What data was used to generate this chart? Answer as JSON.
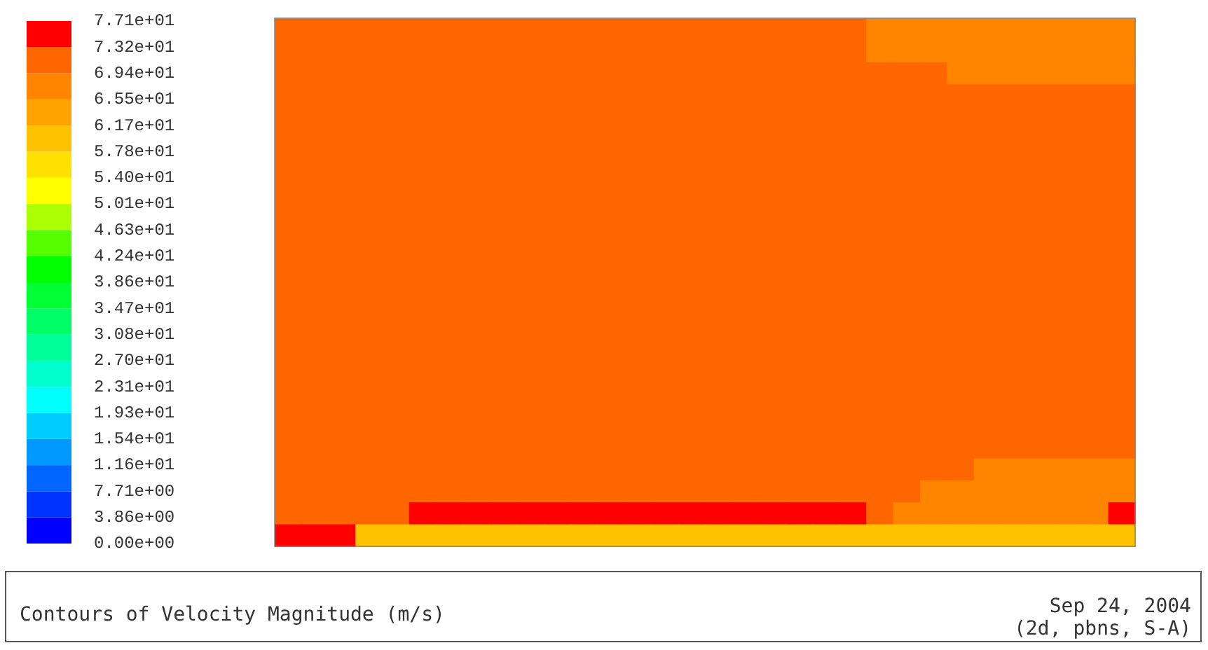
{
  "chart_data": {
    "type": "heatmap",
    "title": "Contours of Velocity Magnitude (m/s)",
    "annotations": [
      "Sep 24, 2004",
      "(2d, pbns, S-A)"
    ],
    "categories": [
      null,
      null,
      null,
      null,
      null,
      null,
      null,
      null,
      null,
      null,
      null,
      null,
      null,
      null,
      null,
      null,
      null,
      null,
      null,
      null,
      null,
      null,
      null,
      null,
      null,
      null,
      null,
      null,
      null,
      null,
      null,
      null
    ],
    "y_categories": [
      null,
      null,
      null,
      null,
      null,
      null,
      null,
      null,
      null,
      null,
      null,
      null,
      null,
      null,
      null,
      null,
      null,
      null,
      null,
      null,
      null,
      null,
      null,
      null
    ],
    "clim": [
      0,
      77.1
    ],
    "cticks": [
      {
        "value": 0,
        "label": "0.00e+00"
      },
      {
        "value": 3.855,
        "label": "3.86e+00"
      },
      {
        "value": 7.71,
        "label": "7.71e+00"
      },
      {
        "value": 11.565,
        "label": "1.16e+01"
      },
      {
        "value": 15.42,
        "label": "1.54e+01"
      },
      {
        "value": 19.275,
        "label": "1.93e+01"
      },
      {
        "value": 23.13,
        "label": "2.31e+01"
      },
      {
        "value": 26.985,
        "label": "2.70e+01"
      },
      {
        "value": 30.84,
        "label": "3.08e+01"
      },
      {
        "value": 34.695,
        "label": "3.47e+01"
      },
      {
        "value": 38.55,
        "label": "3.86e+01"
      },
      {
        "value": 42.405,
        "label": "4.24e+01"
      },
      {
        "value": 46.26,
        "label": "4.63e+01"
      },
      {
        "value": 50.115,
        "label": "5.01e+01"
      },
      {
        "value": 53.97,
        "label": "5.40e+01"
      },
      {
        "value": 57.825,
        "label": "5.78e+01"
      },
      {
        "value": 61.68,
        "label": "6.17e+01"
      },
      {
        "value": 65.535,
        "label": "6.55e+01"
      },
      {
        "value": 69.39,
        "label": "6.94e+01"
      },
      {
        "value": 73.245,
        "label": "7.32e+01"
      },
      {
        "value": 77.1,
        "label": "7.71e+01"
      }
    ],
    "cells": [
      [
        71,
        71,
        71,
        71,
        71,
        71,
        71,
        71,
        71,
        71,
        71,
        71,
        71,
        71,
        71,
        71,
        71,
        71,
        71,
        71,
        71,
        71,
        67,
        67,
        67,
        67,
        67,
        67,
        67,
        67,
        67,
        67
      ],
      [
        71,
        71,
        71,
        71,
        71,
        71,
        71,
        71,
        71,
        71,
        71,
        71,
        71,
        71,
        71,
        71,
        71,
        71,
        71,
        71,
        71,
        71,
        67,
        67,
        67,
        67,
        67,
        67,
        67,
        67,
        67,
        67
      ],
      [
        71,
        71,
        71,
        71,
        71,
        71,
        71,
        71,
        71,
        71,
        71,
        71,
        71,
        71,
        71,
        71,
        71,
        71,
        71,
        71,
        71,
        71,
        71,
        71,
        71,
        67,
        67,
        67,
        67,
        67,
        67,
        67
      ],
      [
        71,
        71,
        71,
        71,
        71,
        71,
        71,
        71,
        71,
        71,
        71,
        71,
        71,
        71,
        71,
        71,
        71,
        71,
        71,
        71,
        71,
        71,
        71,
        71,
        71,
        71,
        71,
        71,
        71,
        71,
        71,
        71
      ],
      [
        71,
        71,
        71,
        71,
        71,
        71,
        71,
        71,
        71,
        71,
        71,
        71,
        71,
        71,
        71,
        71,
        71,
        71,
        71,
        71,
        71,
        71,
        71,
        71,
        71,
        71,
        71,
        71,
        71,
        71,
        71,
        71
      ],
      [
        71,
        71,
        71,
        71,
        71,
        71,
        71,
        71,
        71,
        71,
        71,
        71,
        71,
        71,
        71,
        71,
        71,
        71,
        71,
        71,
        71,
        71,
        71,
        71,
        71,
        71,
        71,
        71,
        71,
        71,
        71,
        71
      ],
      [
        71,
        71,
        71,
        71,
        71,
        71,
        71,
        71,
        71,
        71,
        71,
        71,
        71,
        71,
        71,
        71,
        71,
        71,
        71,
        71,
        71,
        71,
        71,
        71,
        71,
        71,
        71,
        71,
        71,
        71,
        71,
        71
      ],
      [
        71,
        71,
        71,
        71,
        71,
        71,
        71,
        71,
        71,
        71,
        71,
        71,
        71,
        71,
        71,
        71,
        71,
        71,
        71,
        71,
        71,
        71,
        71,
        71,
        71,
        71,
        71,
        71,
        71,
        71,
        71,
        71
      ],
      [
        71,
        71,
        71,
        71,
        71,
        71,
        71,
        71,
        71,
        71,
        71,
        71,
        71,
        71,
        71,
        71,
        71,
        71,
        71,
        71,
        71,
        71,
        71,
        71,
        71,
        71,
        71,
        71,
        71,
        71,
        71,
        71
      ],
      [
        71,
        71,
        71,
        71,
        71,
        71,
        71,
        71,
        71,
        71,
        71,
        71,
        71,
        71,
        71,
        71,
        71,
        71,
        71,
        71,
        71,
        71,
        71,
        71,
        71,
        71,
        71,
        71,
        71,
        71,
        71,
        71
      ],
      [
        71,
        71,
        71,
        71,
        71,
        71,
        71,
        71,
        71,
        71,
        71,
        71,
        71,
        71,
        71,
        71,
        71,
        71,
        71,
        71,
        71,
        71,
        71,
        71,
        71,
        71,
        71,
        71,
        71,
        71,
        71,
        71
      ],
      [
        71,
        71,
        71,
        71,
        71,
        71,
        71,
        71,
        71,
        71,
        71,
        71,
        71,
        71,
        71,
        71,
        71,
        71,
        71,
        71,
        71,
        71,
        71,
        71,
        71,
        71,
        71,
        71,
        71,
        71,
        71,
        71
      ],
      [
        71,
        71,
        71,
        71,
        71,
        71,
        71,
        71,
        71,
        71,
        71,
        71,
        71,
        71,
        71,
        71,
        71,
        71,
        71,
        71,
        71,
        71,
        71,
        71,
        71,
        71,
        71,
        71,
        71,
        71,
        71,
        71
      ],
      [
        71,
        71,
        71,
        71,
        71,
        71,
        71,
        71,
        71,
        71,
        71,
        71,
        71,
        71,
        71,
        71,
        71,
        71,
        71,
        71,
        71,
        71,
        71,
        71,
        71,
        71,
        71,
        71,
        71,
        71,
        71,
        71
      ],
      [
        71,
        71,
        71,
        71,
        71,
        71,
        71,
        71,
        71,
        71,
        71,
        71,
        71,
        71,
        71,
        71,
        71,
        71,
        71,
        71,
        71,
        71,
        71,
        71,
        71,
        71,
        71,
        71,
        71,
        71,
        71,
        71
      ],
      [
        71,
        71,
        71,
        71,
        71,
        71,
        71,
        71,
        71,
        71,
        71,
        71,
        71,
        71,
        71,
        71,
        71,
        71,
        71,
        71,
        71,
        71,
        71,
        71,
        71,
        71,
        71,
        71,
        71,
        71,
        71,
        71
      ],
      [
        71,
        71,
        71,
        71,
        71,
        71,
        71,
        71,
        71,
        71,
        71,
        71,
        71,
        71,
        71,
        71,
        71,
        71,
        71,
        71,
        71,
        71,
        71,
        71,
        71,
        71,
        71,
        71,
        71,
        71,
        71,
        71
      ],
      [
        71,
        71,
        71,
        71,
        71,
        71,
        71,
        71,
        71,
        71,
        71,
        71,
        71,
        71,
        71,
        71,
        71,
        71,
        71,
        71,
        71,
        71,
        71,
        71,
        71,
        71,
        71,
        71,
        71,
        71,
        71,
        71
      ],
      [
        71,
        71,
        71,
        71,
        71,
        71,
        71,
        71,
        71,
        71,
        71,
        71,
        71,
        71,
        71,
        71,
        71,
        71,
        71,
        71,
        71,
        71,
        71,
        71,
        71,
        71,
        71,
        71,
        71,
        71,
        71,
        71
      ],
      [
        71,
        71,
        71,
        71,
        71,
        71,
        71,
        71,
        71,
        71,
        71,
        71,
        71,
        71,
        71,
        71,
        71,
        71,
        71,
        71,
        71,
        71,
        71,
        71,
        71,
        71,
        71,
        71,
        71,
        71,
        71,
        71
      ],
      [
        71,
        71,
        71,
        71,
        71,
        71,
        71,
        71,
        71,
        71,
        71,
        71,
        71,
        71,
        71,
        71,
        71,
        71,
        71,
        71,
        71,
        71,
        71,
        71,
        71,
        71,
        67,
        67,
        67,
        67,
        67,
        67
      ],
      [
        71,
        71,
        71,
        71,
        71,
        71,
        71,
        71,
        71,
        71,
        71,
        71,
        71,
        71,
        71,
        71,
        71,
        71,
        71,
        71,
        71,
        71,
        71,
        71,
        67,
        67,
        67,
        67,
        67,
        67,
        67,
        67
      ],
      [
        71,
        71,
        71,
        71,
        71,
        75,
        75,
        75,
        75,
        75,
        75,
        75,
        75,
        75,
        75,
        75,
        75,
        75,
        75,
        75,
        75,
        75,
        71,
        67,
        67,
        67,
        67,
        67,
        67,
        67,
        67,
        75
      ],
      [
        75,
        75,
        75,
        60,
        60,
        60,
        60,
        60,
        60,
        60,
        60,
        60,
        60,
        60,
        60,
        60,
        60,
        60,
        60,
        60,
        60,
        60,
        60,
        60,
        60,
        60,
        60,
        60,
        60,
        60,
        60,
        60
      ]
    ]
  }
}
